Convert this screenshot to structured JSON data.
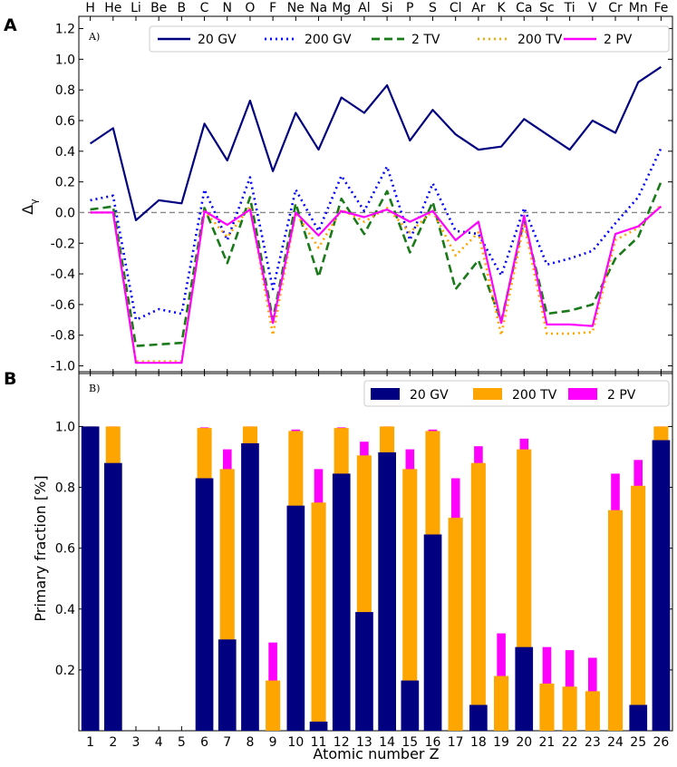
{
  "colors": {
    "gv20": "#000080",
    "gv200": "#0000ff",
    "tv2": "#1a7a1a",
    "tv200": "#ffa500",
    "pv2": "#ff00ff",
    "bar_primary_20gv": "#000080",
    "bar_200tv": "#ffa500",
    "bar_2pv": "#ff00ff"
  },
  "chart_data": [
    {
      "type": "line",
      "panel_label": "A",
      "subplot_label": "A)",
      "xlabel": "",
      "ylabel": "Δ",
      "ylabel_sub": "γ",
      "top_labels": [
        "H",
        "He",
        "Li",
        "Be",
        "B",
        "C",
        "N",
        "O",
        "F",
        "Ne",
        "Na",
        "Mg",
        "Al",
        "Si",
        "P",
        "S",
        "Cl",
        "Ar",
        "K",
        "Ca",
        "Sc",
        "Ti",
        "V",
        "Cr",
        "Mn",
        "Fe"
      ],
      "x": [
        1,
        2,
        3,
        4,
        5,
        6,
        7,
        8,
        9,
        10,
        11,
        12,
        13,
        14,
        15,
        16,
        17,
        18,
        19,
        20,
        21,
        22,
        23,
        24,
        25,
        26
      ],
      "xlim": [
        0.5,
        26.5
      ],
      "ylim": [
        -1.05,
        1.28
      ],
      "yticks": [
        "1.2",
        "1.0",
        "0.8",
        "0.6",
        "0.4",
        "0.2",
        "0.0",
        "-0.2",
        "-0.4",
        "-0.6",
        "-0.8",
        "-1.0"
      ],
      "ytick_values": [
        1.2,
        1.0,
        0.8,
        0.6,
        0.4,
        0.2,
        0.0,
        -0.2,
        -0.4,
        -0.6,
        -0.8,
        -1.0
      ],
      "reference_line": 0.0,
      "series": [
        {
          "name": "20 GV",
          "style": "solid",
          "color_key": "gv20",
          "values": [
            0.45,
            0.55,
            -0.05,
            0.08,
            0.06,
            0.58,
            0.34,
            0.73,
            0.27,
            0.65,
            0.41,
            0.75,
            0.65,
            0.83,
            0.47,
            0.67,
            0.51,
            0.41,
            0.43,
            0.61,
            0.51,
            0.41,
            0.6,
            0.52,
            0.85,
            0.95
          ]
        },
        {
          "name": "200 GV",
          "style": "dotted",
          "color_key": "gv200",
          "values": [
            0.08,
            0.11,
            -0.7,
            -0.63,
            -0.66,
            0.15,
            -0.18,
            0.23,
            -0.5,
            0.15,
            -0.12,
            0.24,
            0.01,
            0.3,
            -0.18,
            0.19,
            -0.12,
            -0.14,
            -0.41,
            0.03,
            -0.34,
            -0.3,
            -0.25,
            -0.07,
            0.1,
            0.42
          ]
        },
        {
          "name": "2 TV",
          "style": "dashed",
          "color_key": "tv2",
          "values": [
            0.02,
            0.04,
            -0.87,
            -0.86,
            -0.85,
            0.03,
            -0.33,
            0.1,
            -0.7,
            0.06,
            -0.42,
            0.09,
            -0.14,
            0.14,
            -0.26,
            0.07,
            -0.5,
            -0.31,
            -0.71,
            -0.05,
            -0.66,
            -0.64,
            -0.6,
            -0.3,
            -0.16,
            0.2
          ]
        },
        {
          "name": "200 TV",
          "style": "dotted",
          "color_key": "tv200",
          "values": [
            0.0,
            0.0,
            -0.97,
            -0.97,
            -0.97,
            0.01,
            -0.16,
            0.04,
            -0.8,
            0.0,
            -0.23,
            0.02,
            -0.06,
            0.03,
            -0.13,
            0.01,
            -0.28,
            -0.13,
            -0.8,
            -0.07,
            -0.79,
            -0.79,
            -0.78,
            -0.18,
            -0.1,
            0.05
          ]
        },
        {
          "name": "2 PV",
          "style": "solid",
          "color_key": "pv2",
          "values": [
            0.0,
            0.0,
            -0.98,
            -0.98,
            -0.98,
            0.01,
            -0.08,
            0.02,
            -0.72,
            0.0,
            -0.15,
            0.01,
            -0.03,
            0.02,
            -0.06,
            0.01,
            -0.18,
            -0.06,
            -0.72,
            -0.02,
            -0.73,
            -0.73,
            -0.74,
            -0.14,
            -0.09,
            0.04
          ]
        }
      ]
    },
    {
      "type": "bar",
      "panel_label": "B",
      "subplot_label": "B)",
      "xlabel": "Atomic number Z",
      "ylabel": "Primary fraction [%]",
      "categories": [
        "1",
        "2",
        "3",
        "4",
        "5",
        "6",
        "7",
        "8",
        "9",
        "10",
        "11",
        "12",
        "13",
        "14",
        "15",
        "16",
        "17",
        "18",
        "19",
        "20",
        "21",
        "22",
        "23",
        "24",
        "25",
        "26"
      ],
      "ylim": [
        0.0,
        1.18
      ],
      "yticks": [
        "1.0",
        "0.8",
        "0.6",
        "0.4",
        "0.2"
      ],
      "ytick_values": [
        1.0,
        0.8,
        0.6,
        0.4,
        0.2
      ],
      "series": [
        {
          "name": "20 GV",
          "color_key": "bar_primary_20gv",
          "values": [
            1.0,
            0.88,
            0,
            0,
            0,
            0.83,
            0.3,
            0.945,
            0,
            0.74,
            0.03,
            0.845,
            0.39,
            0.915,
            0.165,
            0.645,
            0,
            0.085,
            0,
            0.275,
            0,
            0,
            0,
            0,
            0.085,
            0.955
          ]
        },
        {
          "name": "200 TV",
          "color_key": "bar_200tv",
          "values": [
            1.0,
            1.0,
            0,
            0,
            0,
            0.995,
            0.86,
            1.0,
            0.165,
            0.985,
            0.75,
            0.995,
            0.905,
            1.0,
            0.86,
            0.985,
            0.7,
            0.88,
            0.18,
            0.925,
            0.155,
            0.145,
            0.13,
            0.725,
            0.805,
            1.0
          ]
        },
        {
          "name": "2 PV",
          "color_key": "bar_2pv",
          "values": [
            1.0,
            1.0,
            0,
            0,
            0,
            0.997,
            0.925,
            1.0,
            0.29,
            0.99,
            0.86,
            0.997,
            0.95,
            1.0,
            0.925,
            0.99,
            0.83,
            0.935,
            0.32,
            0.96,
            0.275,
            0.265,
            0.24,
            0.845,
            0.89,
            1.0
          ]
        }
      ]
    }
  ]
}
